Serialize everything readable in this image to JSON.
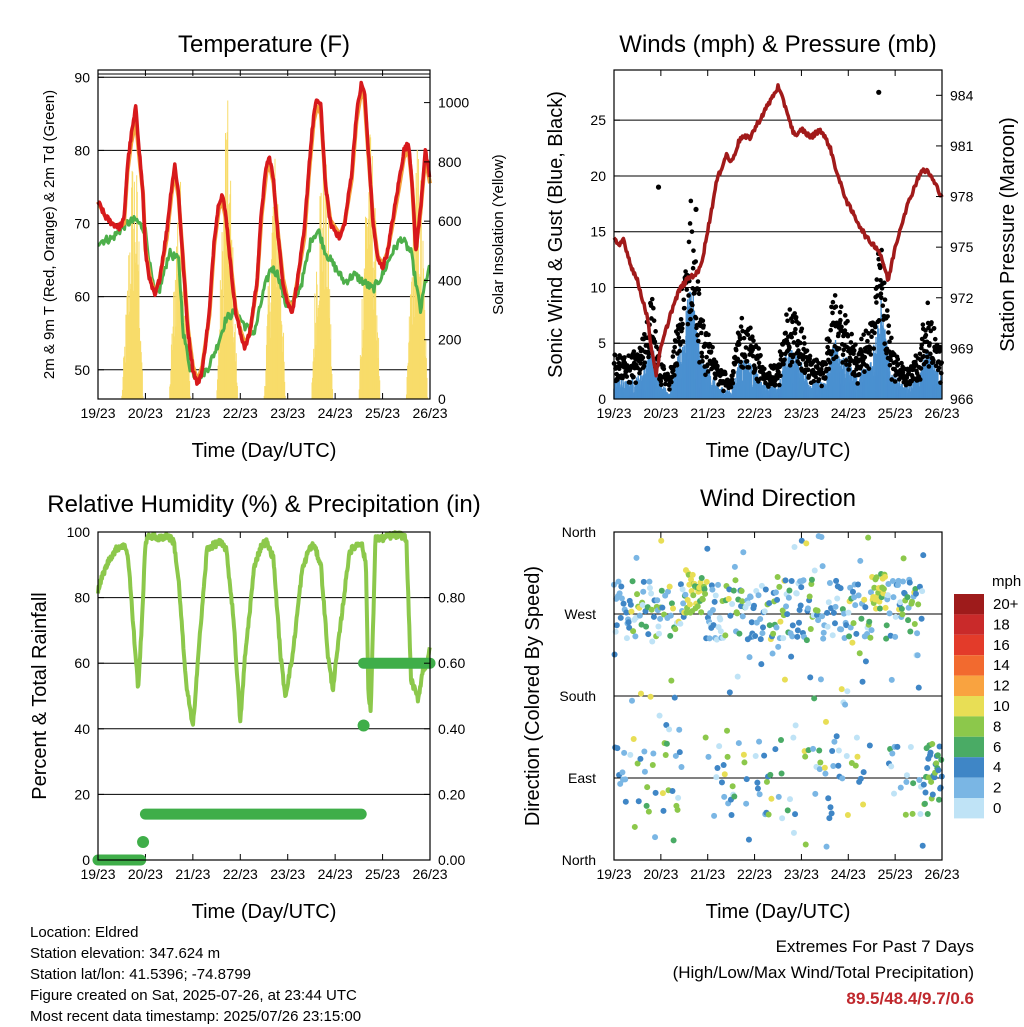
{
  "chart_data": [
    {
      "type": "line",
      "title": "Temperature (F)",
      "xlabel": "Time (Day/UTC)",
      "ylabel": "2m & 9m T (Red, Orange) & 2m Td (Green)",
      "ylabel_right": "Solar Insolation (Yellow)",
      "x_ticks": [
        "19/23",
        "20/23",
        "21/23",
        "22/23",
        "23/23",
        "24/23",
        "25/23",
        "26/23"
      ],
      "ylim": [
        46,
        91
      ],
      "y_ticks": [
        50,
        60,
        70,
        80,
        90
      ],
      "ylim_right": [
        0,
        1110
      ],
      "y_ticks_right": [
        0,
        200,
        400,
        600,
        800,
        1000
      ],
      "grid": true,
      "colors": {
        "t2m": "#d7191c",
        "t9m": "#f4a23c",
        "td": "#4daf4a",
        "solar": "#f8dc6a"
      },
      "series": [
        {
          "key": "t2m",
          "x": [
            0,
            0.15,
            0.3,
            0.45,
            0.55,
            0.62,
            0.7,
            0.8,
            0.87,
            0.95,
            1.0,
            1.1,
            1.2,
            1.3,
            1.45,
            1.55,
            1.62,
            1.7,
            1.8,
            1.9,
            2.0,
            2.1,
            2.2,
            2.35,
            2.45,
            2.55,
            2.62,
            2.7,
            2.8,
            2.9,
            3.0,
            3.1,
            3.2,
            3.35,
            3.45,
            3.55,
            3.62,
            3.7,
            3.8,
            3.9,
            4.0,
            4.1,
            4.2,
            4.35,
            4.45,
            4.55,
            4.62,
            4.7,
            4.8,
            4.9,
            5.0,
            5.1,
            5.2,
            5.35,
            5.45,
            5.55,
            5.62,
            5.7,
            5.8,
            5.9,
            6.0,
            6.1,
            6.2,
            6.35,
            6.45,
            6.55,
            6.62,
            6.7,
            6.8,
            6.9,
            7.0
          ],
          "y": [
            73,
            71,
            70,
            69.5,
            70.5,
            78,
            82,
            86,
            80,
            74,
            66,
            62,
            60,
            62.5,
            69,
            75,
            78,
            74,
            64,
            55,
            50,
            48,
            50,
            58,
            68,
            73,
            74,
            71,
            64,
            58,
            55,
            53,
            55,
            62,
            72,
            78,
            79,
            76,
            68,
            62,
            59,
            58,
            62,
            69,
            78,
            85,
            87,
            86,
            75,
            70,
            69,
            68,
            70,
            77,
            85,
            89,
            88,
            80,
            70,
            65,
            64,
            66,
            70,
            76,
            80,
            81,
            76,
            66,
            72,
            80,
            76
          ]
        },
        {
          "key": "t9m",
          "x": [
            0,
            0.15,
            0.3,
            0.45,
            0.55,
            0.62,
            0.7,
            0.8,
            0.87,
            0.95,
            1.0,
            1.1,
            1.2,
            1.3,
            1.45,
            1.55,
            1.62,
            1.7,
            1.8,
            1.9,
            2.0,
            2.1,
            2.2,
            2.35,
            2.45,
            2.55,
            2.62,
            2.7,
            2.8,
            2.9,
            3.0,
            3.1,
            3.2,
            3.35,
            3.45,
            3.55,
            3.62,
            3.7,
            3.8,
            3.9,
            4.0,
            4.1,
            4.2,
            4.35,
            4.45,
            4.55,
            4.62,
            4.7,
            4.8,
            4.9,
            5.0,
            5.1,
            5.2,
            5.35,
            5.45,
            5.55,
            5.62,
            5.7,
            5.8,
            5.9,
            6.0,
            6.1,
            6.2,
            6.35,
            6.45,
            6.55,
            6.62,
            6.7,
            6.8,
            6.9,
            7.0
          ],
          "y": [
            73,
            71,
            70,
            69.5,
            70,
            77,
            81,
            84,
            79,
            74,
            66.5,
            62.5,
            60.5,
            62.5,
            68,
            74,
            77,
            73.5,
            64.5,
            55.5,
            50.5,
            48.5,
            50.5,
            57.5,
            67,
            72,
            73,
            70.5,
            64.5,
            58.5,
            55.5,
            53.5,
            55,
            61.5,
            71,
            77,
            78,
            75.5,
            68.5,
            62.5,
            59.5,
            58.5,
            62,
            68,
            77,
            84,
            86,
            85,
            75,
            70.5,
            69.5,
            68.5,
            70,
            76,
            84,
            88,
            87,
            79.5,
            70.5,
            65.5,
            64.5,
            66,
            69.5,
            75,
            79,
            80,
            75.5,
            66.5,
            71.5,
            79,
            75.5
          ]
        },
        {
          "key": "td",
          "x": [
            0,
            0.3,
            0.6,
            0.8,
            1.0,
            1.1,
            1.2,
            1.3,
            1.5,
            1.7,
            1.8,
            1.95,
            2.1,
            2.3,
            2.5,
            2.6,
            2.7,
            2.9,
            3.1,
            3.3,
            3.5,
            3.65,
            3.8,
            3.95,
            4.1,
            4.3,
            4.5,
            4.65,
            4.8,
            5.0,
            5.2,
            5.4,
            5.6,
            5.8,
            6.0,
            6.2,
            6.4,
            6.6,
            6.8,
            6.9,
            7.0
          ],
          "y": [
            67.5,
            68,
            70,
            70.5,
            69,
            64,
            60,
            61,
            66,
            65,
            55,
            50,
            49,
            50,
            53,
            55,
            57,
            58,
            56,
            55,
            61,
            64,
            63,
            59,
            59,
            62,
            68,
            69,
            66,
            64,
            62,
            63,
            62,
            61,
            63,
            66,
            68,
            66,
            58,
            62,
            64
          ]
        },
        {
          "key": "solar",
          "axis": "right",
          "x": [
            0,
            0.5,
            0.62,
            0.7,
            0.78,
            0.85,
            0.95,
            1.2,
            1.5,
            1.62,
            1.7,
            1.78,
            1.85,
            1.95,
            2.2,
            2.5,
            2.62,
            2.7,
            2.78,
            2.85,
            2.95,
            3.2,
            3.5,
            3.62,
            3.7,
            3.78,
            3.85,
            3.95,
            4.2,
            4.5,
            4.62,
            4.7,
            4.78,
            4.85,
            4.95,
            5.2,
            5.5,
            5.62,
            5.7,
            5.78,
            5.85,
            5.95,
            6.2,
            6.5,
            6.62,
            6.7,
            6.78,
            6.85,
            6.95,
            7.0
          ],
          "y": [
            0,
            0,
            420,
            820,
            900,
            700,
            0,
            0,
            0,
            500,
            820,
            700,
            420,
            0,
            0,
            0,
            620,
            1100,
            900,
            500,
            0,
            0,
            0,
            520,
            840,
            880,
            600,
            0,
            0,
            0,
            640,
            860,
            900,
            680,
            0,
            0,
            0,
            700,
            960,
            900,
            650,
            0,
            0,
            0,
            560,
            860,
            880,
            600,
            0,
            0
          ]
        }
      ]
    },
    {
      "type": "scatter",
      "title": "Winds (mph) & Pressure (mb)",
      "xlabel": "Time (Day/UTC)",
      "ylabel": "Sonic Wind & Gust (Blue, Black)",
      "ylabel_right": "Station Pressure (Maroon)",
      "x_ticks": [
        "19/23",
        "20/23",
        "21/23",
        "22/23",
        "23/23",
        "24/23",
        "25/23",
        "26/23"
      ],
      "ylim": [
        0,
        29.5
      ],
      "y_ticks": [
        0,
        5,
        10,
        15,
        20,
        25
      ],
      "ylim_right": [
        966,
        985.5
      ],
      "y_ticks_right": [
        966,
        969,
        972,
        975,
        978,
        981,
        984
      ],
      "grid": true,
      "colors": {
        "wind": "#4a90d0",
        "gust": "#000000",
        "pressure": "#a11a1a"
      },
      "series": [
        {
          "key": "pressure",
          "axis": "right",
          "x": [
            0,
            0.1,
            0.2,
            0.35,
            0.5,
            0.7,
            0.8,
            0.9,
            1.0,
            1.2,
            1.4,
            1.6,
            1.8,
            1.9,
            2.0,
            2.2,
            2.4,
            2.5,
            2.7,
            2.9,
            3.1,
            3.3,
            3.5,
            3.7,
            3.8,
            3.9,
            4.0,
            4.2,
            4.4,
            4.6,
            4.8,
            5.0,
            5.2,
            5.4,
            5.6,
            5.7,
            5.85,
            6.0,
            6.2,
            6.4,
            6.55,
            6.7,
            6.8,
            6.9,
            7.0
          ],
          "y": [
            975.5,
            975,
            975.5,
            974,
            973,
            971,
            969,
            967.5,
            969,
            971,
            972.5,
            973.2,
            973.5,
            974.5,
            976,
            979,
            980.5,
            980,
            981.5,
            981.5,
            982.5,
            983.5,
            984.5,
            983,
            982,
            981.5,
            982,
            981.5,
            982,
            981,
            979,
            977.5,
            976.5,
            975.5,
            975,
            974.5,
            973,
            975,
            977,
            978.5,
            979.5,
            979.5,
            979,
            978.5,
            978
          ]
        },
        {
          "key": "wind_mean",
          "x": [
            0,
            0.25,
            0.5,
            0.7,
            0.8,
            1.0,
            1.2,
            1.35,
            1.5,
            1.65,
            1.85,
            2.2,
            2.5,
            2.7,
            2.9,
            3.2,
            3.5,
            3.7,
            3.9,
            4.2,
            4.5,
            4.7,
            4.9,
            5.2,
            5.5,
            5.7,
            5.9,
            6.2,
            6.5,
            6.7,
            6.9,
            7.0
          ],
          "y": [
            1.5,
            1.2,
            1.5,
            2.5,
            4,
            1,
            0.5,
            2.5,
            5,
            8,
            3,
            1,
            0.5,
            3,
            2.5,
            1,
            0.8,
            3.5,
            3,
            1.2,
            1.2,
            4,
            3,
            1.5,
            3,
            6.5,
            2,
            0.8,
            1.5,
            3.5,
            2,
            1.5
          ]
        }
      ],
      "outliers": [
        {
          "x": 0.95,
          "y": 19
        },
        {
          "x": 5.65,
          "y": 27.5
        },
        {
          "x": 1.75,
          "y": 17
        }
      ]
    },
    {
      "type": "line",
      "title": "Relative Humidity (%) & Precipitation (in)",
      "xlabel": "Time (Day/UTC)",
      "ylabel": "Percent & Total Rainfall",
      "x_ticks": [
        "19/23",
        "20/23",
        "21/23",
        "22/23",
        "23/23",
        "24/23",
        "25/23",
        "26/23"
      ],
      "ylim": [
        0,
        100
      ],
      "y_ticks": [
        0,
        20,
        40,
        60,
        80,
        100
      ],
      "ylim_right": [
        0,
        1.0
      ],
      "y_ticks_right": [
        "0.00",
        "0.20",
        "0.40",
        "0.60",
        "0.80"
      ],
      "grid": true,
      "colors": {
        "rh": "#8cc84b",
        "precip": "#3fae49"
      },
      "series": [
        {
          "key": "rh",
          "x": [
            0,
            0.1,
            0.25,
            0.4,
            0.5,
            0.6,
            0.65,
            0.75,
            0.85,
            0.95,
            1.0,
            1.1,
            1.3,
            1.45,
            1.6,
            1.7,
            1.85,
            2.0,
            2.1,
            2.3,
            2.45,
            2.55,
            2.7,
            2.85,
            3.0,
            3.1,
            3.3,
            3.45,
            3.55,
            3.7,
            3.85,
            3.95,
            4.1,
            4.3,
            4.45,
            4.55,
            4.7,
            4.85,
            4.95,
            5.1,
            5.3,
            5.45,
            5.55,
            5.65,
            5.7,
            5.75,
            5.85,
            6.0,
            6.2,
            6.4,
            6.5,
            6.6,
            6.75,
            6.85,
            6.95,
            7.0
          ],
          "y": [
            82,
            87,
            92,
            95,
            96,
            95,
            90,
            70,
            52,
            80,
            97,
            99,
            98,
            99,
            97,
            85,
            55,
            40,
            60,
            95,
            96,
            97,
            95,
            75,
            42,
            62,
            90,
            96,
            97,
            92,
            62,
            50,
            62,
            88,
            95,
            96,
            90,
            62,
            52,
            70,
            94,
            96,
            97,
            90,
            52,
            45,
            98,
            98,
            99,
            99,
            98,
            55,
            49,
            58,
            60,
            65
          ]
        },
        {
          "key": "precip",
          "axis": "right",
          "x": [
            0,
            0.9,
            0.95,
            1.0,
            5.55,
            5.6,
            7.0
          ],
          "y": [
            0,
            0,
            0.05,
            0.14,
            0.14,
            0.6,
            0.6
          ]
        }
      ],
      "outliers": [
        {
          "x": 0.95,
          "y": 0.055,
          "axis": "right"
        },
        {
          "x": 5.6,
          "y": 0.41,
          "axis": "right"
        }
      ]
    },
    {
      "type": "scatter",
      "title": "Wind Direction",
      "xlabel": "Time (Day/UTC)",
      "ylabel": "Direction (Colored By Speed)",
      "x_ticks": [
        "19/23",
        "20/23",
        "21/23",
        "22/23",
        "23/23",
        "24/23",
        "25/23",
        "26/23"
      ],
      "y_ticks": [
        "North",
        "West",
        "South",
        "East",
        "North"
      ],
      "grid": true,
      "legend": {
        "title": "mph",
        "position": "right",
        "labels": [
          "20+",
          "18",
          "16",
          "14",
          "12",
          "10",
          "8",
          "6",
          "4",
          "2",
          "0"
        ],
        "colors": [
          "#9e1b1b",
          "#c92a2a",
          "#e33b2a",
          "#f26a2f",
          "#f9a340",
          "#e8de55",
          "#8cc84b",
          "#4aab65",
          "#3f86c6",
          "#7ab6e4",
          "#bfe3f6"
        ]
      }
    }
  ],
  "footer": {
    "location": "Location: Eldred",
    "elevation": "Station elevation: 347.624 m",
    "latlon": "Station lat/lon: 41.5396; -74.8799",
    "created": "Figure created on Sat, 2025-07-26, at 23:44 UTC",
    "recent": "Most recent data timestamp: 2025/07/26 23:15:00",
    "extremes_title": "Extremes For Past 7 Days",
    "extremes_desc": "(High/Low/Max Wind/Total Precipitation)",
    "extremes_value": "89.5/48.4/9.7/0.6"
  }
}
